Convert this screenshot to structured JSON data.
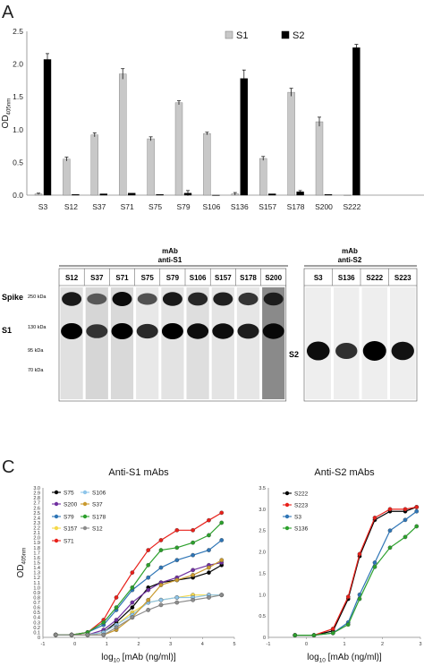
{
  "panels": {
    "a": {
      "letter": "A"
    },
    "b": {
      "group1_title": "mAb",
      "group1_subtitle": "anti-S1",
      "group2_title": "mAb",
      "group2_subtitle": "anti-S2",
      "lanes1": [
        "S12",
        "S37",
        "S71",
        "S75",
        "S79",
        "S106",
        "S157",
        "S178",
        "S200"
      ],
      "lanes2": [
        "S3",
        "S136",
        "S222",
        "S223"
      ],
      "row_labels": [
        "Spike",
        "S1",
        "S2"
      ],
      "markers": [
        "250 kDa",
        "130 kDa",
        "95 kDa",
        "70 kDa"
      ]
    },
    "c": {
      "letter": "C"
    }
  },
  "chart_data": [
    {
      "type": "bar",
      "ylabel_main": "OD",
      "ylabel_sub": "405nm",
      "ylim": [
        0,
        2.5
      ],
      "yticks": [
        "0.0",
        "0.5",
        "1.0",
        "1.5",
        "2.0",
        "2.5"
      ],
      "legend_placement": "top-right",
      "categories": [
        "S3",
        "S12",
        "S37",
        "S71",
        "S75",
        "S79",
        "S106",
        "S136",
        "S157",
        "S178",
        "S200",
        "S222"
      ],
      "series": [
        {
          "name": "S1",
          "color": "#c8c8c8",
          "values": [
            0.02,
            0.55,
            0.92,
            1.85,
            0.86,
            1.41,
            0.94,
            0.02,
            0.56,
            1.57,
            1.12,
            0.0
          ],
          "errors": [
            0.01,
            0.03,
            0.03,
            0.08,
            0.03,
            0.03,
            0.02,
            0.02,
            0.03,
            0.06,
            0.07,
            0.0
          ]
        },
        {
          "name": "S2",
          "color": "#000000",
          "values": [
            2.07,
            0.01,
            0.02,
            0.03,
            0.01,
            0.03,
            0.0,
            1.78,
            0.02,
            0.05,
            0.01,
            2.25
          ],
          "errors": [
            0.09,
            0.0,
            0.0,
            0.0,
            0.0,
            0.04,
            0.0,
            0.13,
            0.0,
            0.02,
            0.0,
            0.05
          ]
        }
      ]
    },
    {
      "type": "line",
      "title": "Anti-S1 mAbs",
      "ylabel_main": "OD",
      "ylabel_sub": "405nm",
      "xlabel_pre": "log",
      "xlabel_sub": "10",
      "xlabel_post": " [mAb (ng/ml)]",
      "xlim": [
        -1,
        5
      ],
      "ylim": [
        0,
        3.0
      ],
      "xticks": [
        "-1",
        "0",
        "1",
        "2",
        "3",
        "4",
        "5"
      ],
      "yticks": [
        "0",
        "0.1",
        "0.2",
        "0.3",
        "0.4",
        "0.5",
        "0.6",
        "0.7",
        "0.8",
        "0.9",
        "1.0",
        "1.1",
        "1.2",
        "1.3",
        "1.4",
        "1.5",
        "1.6",
        "1.7",
        "1.8",
        "1.9",
        "2.0",
        "2.1",
        "2.2",
        "2.3",
        "2.4",
        "2.5",
        "2.6",
        "2.7",
        "2.8",
        "2.9",
        "3.0"
      ],
      "x": [
        -0.6,
        -0.1,
        0.4,
        0.9,
        1.3,
        1.8,
        2.3,
        2.7,
        3.2,
        3.7,
        4.2,
        4.6
      ],
      "series": [
        {
          "name": "S75",
          "color": "#000000",
          "values": [
            0.05,
            0.05,
            0.05,
            0.1,
            0.3,
            0.6,
            1.0,
            1.1,
            1.15,
            1.2,
            1.3,
            1.45
          ]
        },
        {
          "name": "S200",
          "color": "#7030a0",
          "values": [
            0.05,
            0.05,
            0.05,
            0.15,
            0.35,
            0.7,
            0.95,
            1.1,
            1.2,
            1.35,
            1.45,
            1.5
          ]
        },
        {
          "name": "S79",
          "color": "#2e75b6",
          "values": [
            0.05,
            0.05,
            0.1,
            0.25,
            0.55,
            0.95,
            1.2,
            1.4,
            1.55,
            1.65,
            1.75,
            1.95
          ]
        },
        {
          "name": "S157",
          "color": "#f5d94a",
          "values": [
            0.05,
            0.05,
            0.05,
            0.1,
            0.25,
            0.5,
            0.7,
            0.75,
            0.8,
            0.85,
            0.85,
            0.85
          ]
        },
        {
          "name": "S71",
          "color": "#e8201a",
          "values": [
            0.05,
            0.05,
            0.1,
            0.35,
            0.8,
            1.3,
            1.75,
            1.95,
            2.15,
            2.15,
            2.35,
            2.5
          ]
        },
        {
          "name": "S106",
          "color": "#8ec5ea",
          "values": [
            0.05,
            0.05,
            0.05,
            0.1,
            0.25,
            0.45,
            0.7,
            0.75,
            0.8,
            0.8,
            0.85,
            0.85
          ]
        },
        {
          "name": "S37",
          "color": "#c99a2e",
          "values": [
            0.05,
            0.05,
            0.05,
            0.05,
            0.15,
            0.4,
            0.75,
            1.05,
            1.15,
            1.25,
            1.4,
            1.55
          ]
        },
        {
          "name": "S178",
          "color": "#2ca02c",
          "values": [
            0.05,
            0.05,
            0.1,
            0.3,
            0.6,
            1.0,
            1.45,
            1.75,
            1.8,
            1.9,
            2.05,
            2.3
          ]
        },
        {
          "name": "S12",
          "color": "#8c8c8c",
          "values": [
            0.05,
            0.05,
            0.05,
            0.05,
            0.2,
            0.4,
            0.55,
            0.65,
            0.7,
            0.75,
            0.8,
            0.85
          ]
        }
      ],
      "legend_placement": "top-left"
    },
    {
      "type": "line",
      "title": "Anti-S2 mAbs",
      "xlabel_pre": "log",
      "xlabel_sub": "10",
      "xlabel_post": " [mAb (ng/ml)]",
      "xlim": [
        -1,
        3
      ],
      "ylim": [
        0,
        3.5
      ],
      "xticks": [
        "-1",
        "0",
        "1",
        "2",
        "3"
      ],
      "yticks": [
        "0",
        "0.5",
        "1.0",
        "1.5",
        "2.0",
        "2.5",
        "3.0",
        "3.5"
      ],
      "x": [
        -0.3,
        0.2,
        0.7,
        1.1,
        1.4,
        1.8,
        2.2,
        2.6,
        2.9
      ],
      "series": [
        {
          "name": "S222",
          "color": "#000000",
          "values": [
            0.05,
            0.05,
            0.15,
            0.9,
            1.9,
            2.75,
            2.95,
            2.95,
            3.05
          ]
        },
        {
          "name": "S223",
          "color": "#e8201a",
          "values": [
            0.05,
            0.05,
            0.2,
            0.95,
            1.95,
            2.8,
            3.0,
            3.0,
            3.05
          ]
        },
        {
          "name": "S3",
          "color": "#2e75b6",
          "values": [
            0.05,
            0.05,
            0.1,
            0.35,
            1.0,
            1.75,
            2.5,
            2.75,
            2.95
          ]
        },
        {
          "name": "S136",
          "color": "#2ca02c",
          "values": [
            0.05,
            0.05,
            0.1,
            0.3,
            0.9,
            1.65,
            2.1,
            2.35,
            2.6
          ]
        }
      ],
      "legend_placement": "top-left"
    }
  ]
}
